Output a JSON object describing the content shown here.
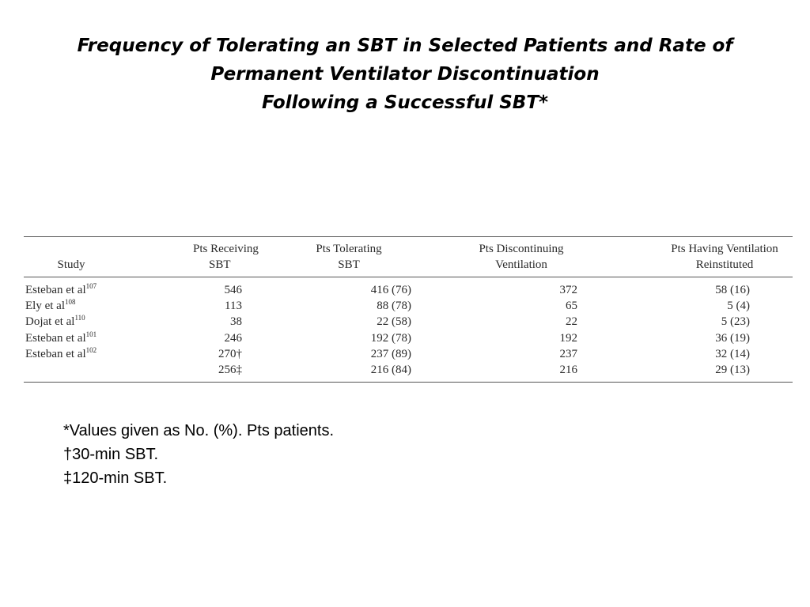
{
  "title": {
    "line1": "Frequency of Tolerating an SBT in Selected Patients and Rate of",
    "line2": "Permanent Ventilator Discontinuation",
    "line3": "Following a Successful SBT*"
  },
  "table": {
    "headers": [
      {
        "line1": "",
        "line2": "Study"
      },
      {
        "line1": "Pts Receiving",
        "line2": "SBT"
      },
      {
        "line1": "Pts Tolerating",
        "line2": "SBT"
      },
      {
        "line1": "Pts Discontinuing",
        "line2": "Ventilation"
      },
      {
        "line1": "Pts Having Ventilation",
        "line2": "Reinstituted"
      }
    ],
    "rows": [
      {
        "study": "Esteban et al",
        "ref": "107",
        "receiving": "546",
        "tolerating": "416 (76)",
        "discontinuing": "372",
        "reinstituted": "58 (16)"
      },
      {
        "study": "Ely et al",
        "ref": "108",
        "receiving": "113",
        "tolerating": "88 (78)",
        "discontinuing": "65",
        "reinstituted": "5 (4)"
      },
      {
        "study": "Dojat et al",
        "ref": "110",
        "receiving": "38",
        "tolerating": "22 (58)",
        "discontinuing": "22",
        "reinstituted": "5 (23)"
      },
      {
        "study": "Esteban et al",
        "ref": "101",
        "receiving": "246",
        "tolerating": "192 (78)",
        "discontinuing": "192",
        "reinstituted": "36 (19)"
      },
      {
        "study": "Esteban et al",
        "ref": "102",
        "receiving": "270†",
        "tolerating": "237 (89)",
        "discontinuing": "237",
        "reinstituted": "32 (14)"
      },
      {
        "study": "",
        "ref": "",
        "receiving": "256‡",
        "tolerating": "216 (84)",
        "discontinuing": "216",
        "reinstituted": "29 (13)"
      }
    ]
  },
  "notes": [
    "*Values given as No. (%). Pts  patients.",
    "†30-min SBT.",
    "‡120-min SBT."
  ]
}
